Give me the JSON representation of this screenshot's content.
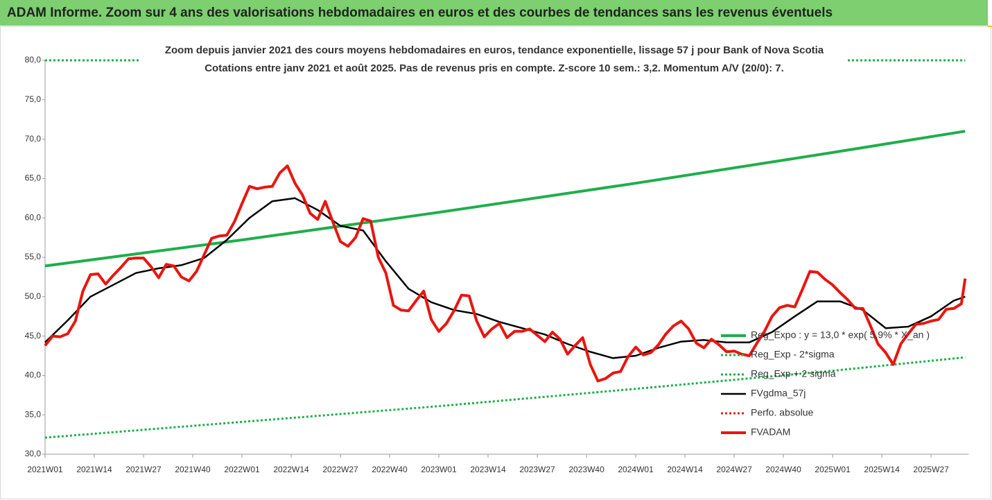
{
  "chart_data": {
    "type": "line",
    "title": "ADAM Informe. Zoom sur 4 ans des valorisations hebdomadaires en euros et des courbes de tendances sans les revenus éventuels",
    "subtitle": [
      "Zoom depuis janvier 2021 des cours moyens hebdomadaires en euros, tendance exponentielle, lissage 57 j pour Bank of Nova Scotia",
      "Cotations entre janv 2021 et août 2025.  Pas de revenus pris en compte. Z-score 10 sem.: 3,2. Momentum A/V (20/0): 7."
    ],
    "xlim": [
      0,
      243
    ],
    "xticks": [
      {
        "value": 0,
        "label": "2021W01"
      },
      {
        "value": 13,
        "label": "2021W14"
      },
      {
        "value": 26,
        "label": "2021W27"
      },
      {
        "value": 39,
        "label": "2021W40"
      },
      {
        "value": 52,
        "label": "2022W01"
      },
      {
        "value": 65,
        "label": "2022W14"
      },
      {
        "value": 78,
        "label": "2022W27"
      },
      {
        "value": 91,
        "label": "2022W40"
      },
      {
        "value": 104,
        "label": "2023W01"
      },
      {
        "value": 117,
        "label": "2023W14"
      },
      {
        "value": 130,
        "label": "2023W27"
      },
      {
        "value": 143,
        "label": "2023W40"
      },
      {
        "value": 156,
        "label": "2024W01"
      },
      {
        "value": 169,
        "label": "2024W14"
      },
      {
        "value": 182,
        "label": "2024W27"
      },
      {
        "value": 195,
        "label": "2024W40"
      },
      {
        "value": 208,
        "label": "2025W01"
      },
      {
        "value": 221,
        "label": "2025W14"
      },
      {
        "value": 234,
        "label": "2025W27"
      }
    ],
    "ylim": [
      30,
      80
    ],
    "yticks": [
      {
        "value": 30,
        "label": "30,0"
      },
      {
        "value": 35,
        "label": "35,0"
      },
      {
        "value": 40,
        "label": "40,0"
      },
      {
        "value": 45,
        "label": "45,0"
      },
      {
        "value": 50,
        "label": "50,0"
      },
      {
        "value": 55,
        "label": "55,0"
      },
      {
        "value": 60,
        "label": "60,0"
      },
      {
        "value": 65,
        "label": "65,0"
      },
      {
        "value": 70,
        "label": "70,0"
      },
      {
        "value": 75,
        "label": "75,0"
      },
      {
        "value": 80,
        "label": "80,0"
      }
    ],
    "grid": false,
    "series": [
      {
        "name": "Reg_Expo : y = 13,0 * exp( 5,9% * X_an )",
        "color": "#1fae4b",
        "style": "solid",
        "width": 4,
        "x": [
          0,
          52,
          104,
          156,
          208,
          243
        ],
        "values": [
          53.9,
          57.2,
          60.7,
          64.4,
          68.3,
          71.0
        ]
      },
      {
        "name": "Reg_Exp - 2*sigma",
        "color": "#1fae4b",
        "style": "dotted",
        "width": 3,
        "x": [
          0,
          52,
          104,
          156,
          208,
          243
        ],
        "values": [
          32.1,
          34.1,
          36.1,
          38.3,
          40.6,
          42.3
        ]
      },
      {
        "name": "Reg_Exp + 2 sigma",
        "color": "#1fae4b",
        "style": "dotted",
        "width": 3,
        "x": [
          0,
          243
        ],
        "values": [
          80,
          80
        ]
      },
      {
        "name": "FVgdma_57j",
        "color": "#000000",
        "style": "solid",
        "width": 2.5,
        "x": [
          0,
          6,
          12,
          18,
          24,
          30,
          36,
          42,
          48,
          54,
          60,
          66,
          72,
          78,
          84,
          90,
          96,
          102,
          108,
          114,
          120,
          126,
          132,
          138,
          144,
          150,
          156,
          162,
          168,
          174,
          180,
          186,
          192,
          198,
          204,
          210,
          216,
          222,
          228,
          234,
          240,
          243
        ],
        "values": [
          44.2,
          47.0,
          50.0,
          51.5,
          53.0,
          53.6,
          54.0,
          54.9,
          57.2,
          60.0,
          62.1,
          62.5,
          61.0,
          59.0,
          58.4,
          54.5,
          51.0,
          49.3,
          48.3,
          47.8,
          46.8,
          46.0,
          45.2,
          44.0,
          43.0,
          42.2,
          42.5,
          43.5,
          44.3,
          44.5,
          44.2,
          44.2,
          45.5,
          47.5,
          49.4,
          49.4,
          48.3,
          46.0,
          46.2,
          47.5,
          49.5,
          50.0
        ]
      },
      {
        "name": "Perfo. absolue",
        "color": "#e0201b",
        "style": "dotted",
        "width": 3,
        "x": [],
        "values": []
      },
      {
        "name": "FVADAM",
        "color": "#e8160f",
        "style": "solid",
        "width": 4,
        "x": [
          0,
          2,
          4,
          6,
          8,
          10,
          12,
          14,
          16,
          18,
          20,
          22,
          24,
          26,
          28,
          30,
          32,
          34,
          36,
          38,
          40,
          42,
          44,
          46,
          48,
          50,
          52,
          54,
          56,
          58,
          60,
          62,
          64,
          66,
          68,
          70,
          72,
          74,
          76,
          78,
          80,
          82,
          84,
          86,
          88,
          90,
          92,
          94,
          96,
          98,
          100,
          102,
          104,
          106,
          108,
          110,
          112,
          114,
          116,
          118,
          120,
          122,
          124,
          126,
          128,
          130,
          132,
          134,
          136,
          138,
          140,
          142,
          144,
          146,
          148,
          150,
          152,
          154,
          156,
          158,
          160,
          162,
          164,
          166,
          168,
          170,
          172,
          174,
          176,
          178,
          180,
          182,
          184,
          186,
          188,
          190,
          192,
          194,
          196,
          198,
          200,
          202,
          204,
          206,
          208,
          210,
          212,
          214,
          216,
          218,
          220,
          222,
          224,
          226,
          228,
          230,
          232,
          234,
          236,
          238,
          240,
          242,
          243
        ],
        "values": [
          43.8,
          45.0,
          44.9,
          45.3,
          46.9,
          50.7,
          52.8,
          52.9,
          51.6,
          52.7,
          53.7,
          54.8,
          54.9,
          54.9,
          53.8,
          52.4,
          54.1,
          53.9,
          52.5,
          52.0,
          53.2,
          55.3,
          57.4,
          57.7,
          57.8,
          59.5,
          61.8,
          64.0,
          63.7,
          63.9,
          64.0,
          65.7,
          66.6,
          64.4,
          62.9,
          60.6,
          59.8,
          62.1,
          59.5,
          57.0,
          56.4,
          57.5,
          59.9,
          59.6,
          55.0,
          53.0,
          48.9,
          48.3,
          48.2,
          49.5,
          50.7,
          47.1,
          45.6,
          46.6,
          48.2,
          50.2,
          50.1,
          46.9,
          44.9,
          45.9,
          46.6,
          44.8,
          45.6,
          45.6,
          45.9,
          45.1,
          44.3,
          45.5,
          44.6,
          42.7,
          43.8,
          44.8,
          41.4,
          39.3,
          39.6,
          40.3,
          40.5,
          42.4,
          43.6,
          42.6,
          42.9,
          43.9,
          45.3,
          46.3,
          46.9,
          45.9,
          44.1,
          43.5,
          44.6,
          43.9,
          43.0,
          43.1,
          42.7,
          42.5,
          44.1,
          45.6,
          47.5,
          48.6,
          48.9,
          48.7,
          50.9,
          53.2,
          53.1,
          52.2,
          51.5,
          50.5,
          49.6,
          48.5,
          48.5,
          46.3,
          44.0,
          42.9,
          41.4,
          44.0,
          45.3,
          46.5,
          46.6,
          46.9,
          47.1,
          48.4,
          48.5,
          49.1,
          52.3
        ]
      }
    ]
  }
}
